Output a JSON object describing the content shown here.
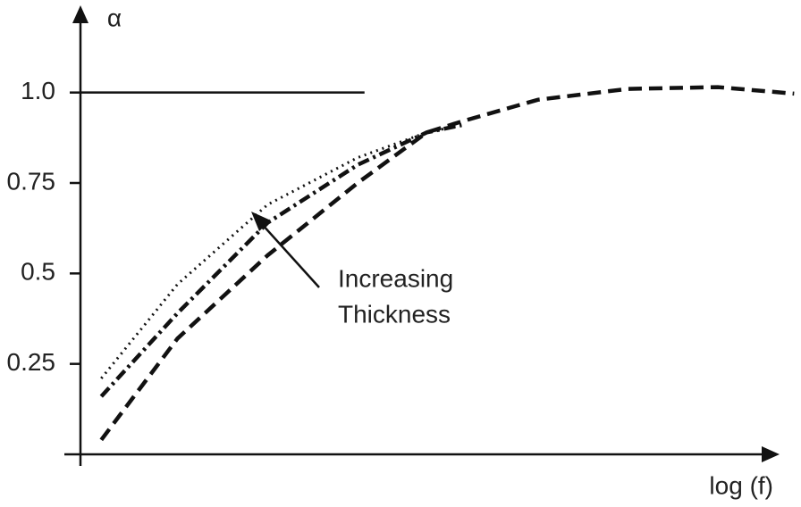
{
  "chart_data": {
    "type": "line",
    "y_label": "α",
    "x_label": "log (f)",
    "annotation": [
      "Increasing",
      "Thickness"
    ],
    "x": [
      0.03,
      0.14,
      0.27,
      0.4,
      0.5,
      0.55,
      0.66,
      0.79,
      0.92,
      1.03
    ],
    "xlim": [
      0,
      1.04
    ],
    "ylim": [
      0,
      1.22
    ],
    "yticks": [
      {
        "value": 1,
        "label": "1.0"
      },
      0.75,
      0.5,
      0.25
    ],
    "reference_line": {
      "y": 1,
      "x_end": 0.41,
      "color": "#111111"
    },
    "series": [
      {
        "style": "dashed",
        "color": "#111111",
        "values": [
          0.04,
          0.32,
          0.55,
          0.75,
          0.89,
          0.92,
          0.98,
          1.01,
          1.015,
          0.997
        ]
      },
      {
        "style": "dash-dot",
        "color": "#111111",
        "values": [
          0.16,
          0.39,
          0.64,
          0.8,
          0.89,
          0.91,
          null,
          null,
          null,
          null
        ]
      },
      {
        "style": "dotted",
        "color": "#111111",
        "values": [
          0.21,
          0.47,
          0.69,
          0.82,
          0.89,
          0.91,
          null,
          null,
          null,
          null
        ]
      }
    ]
  }
}
